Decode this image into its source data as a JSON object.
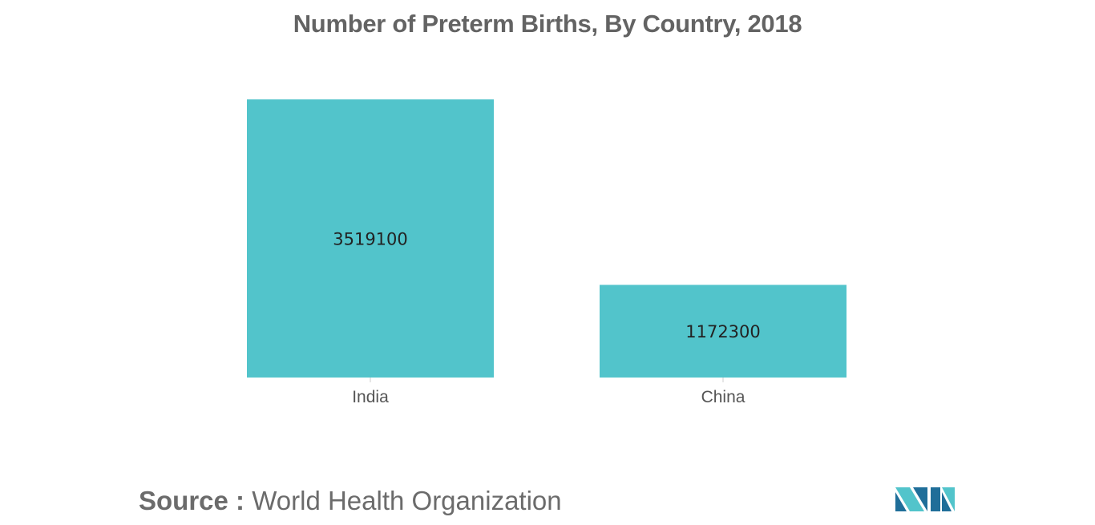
{
  "colors": {
    "bar": "#52c4cb",
    "title": "#636363",
    "tick_label": "#555555",
    "value_label": "#222222",
    "logo_dark": "#1f6e99",
    "logo_light": "#52c4cb"
  },
  "chart_data": {
    "type": "bar",
    "title": "Number of Preterm Births, By Country, 2018",
    "categories": [
      "India",
      "China"
    ],
    "values": [
      3519100,
      1172300
    ],
    "data_labels": [
      "3519100",
      "1172300"
    ],
    "xlabel": "",
    "ylabel": "",
    "ylim": [
      0,
      3519100
    ],
    "grid": false,
    "legend": "none"
  },
  "footer": {
    "source_label": "Source :",
    "source_text": "World Health Organization"
  },
  "logo": {
    "icon": "mordor-logo-icon"
  }
}
